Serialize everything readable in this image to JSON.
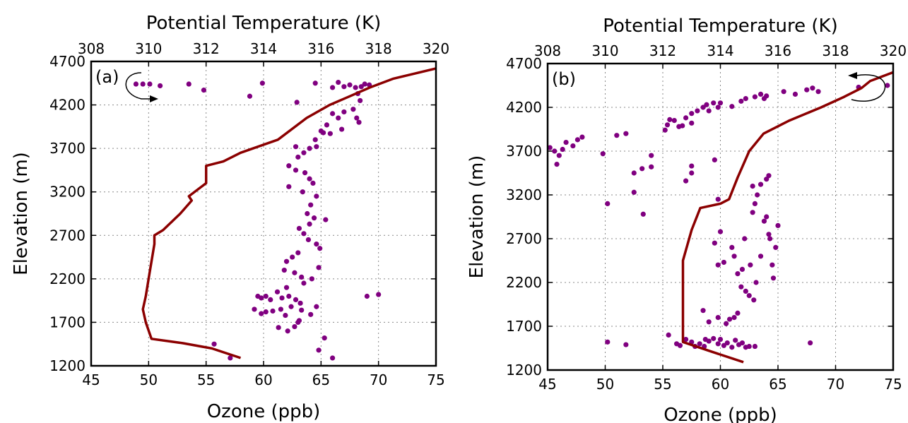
{
  "chart_data": [
    {
      "type": "scatter",
      "panel_label": "(a)",
      "xlabel": "Ozone (ppb)",
      "ylabel": "Elevation (m)",
      "x2label": "Potential Temperature (K)",
      "xlim": [
        45,
        75
      ],
      "ylim": [
        1200,
        4700
      ],
      "x2lim": [
        308,
        320
      ],
      "xticks": [
        "45",
        "50",
        "55",
        "60",
        "65",
        "70",
        "75"
      ],
      "yticks": [
        "1200",
        "1700",
        "2200",
        "2700",
        "3200",
        "3700",
        "4200",
        "4700"
      ],
      "x2ticks": [
        "308",
        "310",
        "312",
        "314",
        "316",
        "318",
        "320"
      ],
      "grid": true,
      "colors": {
        "points": "#800080",
        "line": "#8b0000"
      },
      "rotation_arrow": "counter-clockwise, top-left",
      "series": [
        {
          "kind": "scatter",
          "axis": "ozone",
          "points": [
            [
              48.9,
              4440
            ],
            [
              49.5,
              4440
            ],
            [
              50.1,
              4440
            ],
            [
              51,
              4420
            ],
            [
              53.5,
              4440
            ],
            [
              54.8,
              4370
            ],
            [
              58.8,
              4300
            ],
            [
              59.9,
              4450
            ],
            [
              62.9,
              4230
            ],
            [
              64.5,
              4450
            ],
            [
              66,
              4400
            ],
            [
              66.5,
              4460
            ],
            [
              67,
              4410
            ],
            [
              67.5,
              4430
            ],
            [
              68,
              4400
            ],
            [
              68.5,
              4410
            ],
            [
              68.8,
              4440
            ],
            [
              69.2,
              4430
            ],
            [
              68.2,
              4330
            ],
            [
              68.4,
              4250
            ],
            [
              67.8,
              4150
            ],
            [
              68.1,
              4050
            ],
            [
              68.3,
              4000
            ],
            [
              66,
              4100
            ],
            [
              66.5,
              4050
            ],
            [
              67,
              4120
            ],
            [
              65.5,
              3970
            ],
            [
              65,
              3900
            ],
            [
              64.5,
              3800
            ],
            [
              65.8,
              3870
            ],
            [
              66.8,
              3920
            ],
            [
              65.2,
              3880
            ],
            [
              64,
              3700
            ],
            [
              63.5,
              3650
            ],
            [
              64.6,
              3720
            ],
            [
              63,
              3600
            ],
            [
              62.8,
              3720
            ],
            [
              62.2,
              3500
            ],
            [
              62.8,
              3450
            ],
            [
              63.6,
              3420
            ],
            [
              64,
              3350
            ],
            [
              64.3,
              3300
            ],
            [
              62.2,
              3260
            ],
            [
              63.4,
              3200
            ],
            [
              64.6,
              3150
            ],
            [
              64.1,
              3050
            ],
            [
              63.8,
              2950
            ],
            [
              64.4,
              2900
            ],
            [
              65.4,
              2880
            ],
            [
              64,
              2830
            ],
            [
              63.1,
              2780
            ],
            [
              63.5,
              2720
            ],
            [
              63.9,
              2650
            ],
            [
              64.6,
              2600
            ],
            [
              64.9,
              2550
            ],
            [
              63,
              2500
            ],
            [
              62.5,
              2450
            ],
            [
              62,
              2400
            ],
            [
              61.8,
              2300
            ],
            [
              62.7,
              2270
            ],
            [
              63.3,
              2220
            ],
            [
              64.2,
              2200
            ],
            [
              64.8,
              2330
            ],
            [
              63.5,
              2150
            ],
            [
              62,
              2100
            ],
            [
              61.2,
              2050
            ],
            [
              60.2,
              2000
            ],
            [
              59.5,
              2000
            ],
            [
              59.8,
              1980
            ],
            [
              60.6,
              1960
            ],
            [
              61.6,
              1980
            ],
            [
              62.2,
              2000
            ],
            [
              62.8,
              1960
            ],
            [
              63.2,
              1920
            ],
            [
              62.4,
              1880
            ],
            [
              61.5,
              1850
            ],
            [
              60.8,
              1830
            ],
            [
              60.2,
              1820
            ],
            [
              59.8,
              1800
            ],
            [
              59.2,
              1850
            ],
            [
              61.9,
              1780
            ],
            [
              63.3,
              1840
            ],
            [
              64.6,
              1880
            ],
            [
              64.1,
              1790
            ],
            [
              63.1,
              1720
            ],
            [
              62.7,
              1650
            ],
            [
              62.1,
              1600
            ],
            [
              61.3,
              1640
            ],
            [
              63,
              1700
            ],
            [
              65.3,
              1520
            ],
            [
              64.8,
              1380
            ],
            [
              66,
              1290
            ],
            [
              57.1,
              1290
            ],
            [
              55.7,
              1450
            ],
            [
              69,
              2000
            ],
            [
              70,
              2020
            ]
          ]
        },
        {
          "kind": "line",
          "axis": "potential_temperature",
          "points": [
            [
              313.2,
              1290
            ],
            [
              312.2,
              1400
            ],
            [
              311.2,
              1460
            ],
            [
              310.1,
              1510
            ],
            [
              309.9,
              1700
            ],
            [
              309.8,
              1850
            ],
            [
              309.9,
              2000
            ],
            [
              310,
              2200
            ],
            [
              310.1,
              2400
            ],
            [
              310.2,
              2600
            ],
            [
              310.2,
              2700
            ],
            [
              310.5,
              2760
            ],
            [
              311.1,
              2950
            ],
            [
              311.5,
              3100
            ],
            [
              311.4,
              3150
            ],
            [
              312,
              3300
            ],
            [
              312,
              3500
            ],
            [
              312.6,
              3550
            ],
            [
              313.2,
              3650
            ],
            [
              314.5,
              3800
            ],
            [
              315.5,
              4050
            ],
            [
              316.3,
              4200
            ],
            [
              317,
              4300
            ],
            [
              317.7,
              4400
            ],
            [
              318.5,
              4500
            ],
            [
              320,
              4620
            ]
          ]
        }
      ]
    },
    {
      "type": "scatter",
      "panel_label": "(b)",
      "xlabel": "Ozone (ppb)",
      "ylabel": "Elevation (m)",
      "x2label": "Potential Temperature (K)",
      "xlim": [
        45,
        75
      ],
      "ylim": [
        1200,
        4700
      ],
      "x2lim": [
        308,
        320
      ],
      "xticks": [
        "45",
        "50",
        "55",
        "60",
        "65",
        "70",
        "75"
      ],
      "yticks": [
        "1200",
        "1700",
        "2200",
        "2700",
        "3200",
        "3700",
        "4200",
        "4700"
      ],
      "x2ticks": [
        "308",
        "310",
        "312",
        "314",
        "316",
        "318",
        "320"
      ],
      "grid": true,
      "colors": {
        "points": "#800080",
        "line": "#8b0000"
      },
      "rotation_arrow": "clockwise, top-right",
      "series": [
        {
          "kind": "scatter",
          "axis": "ozone",
          "points": [
            [
              45.2,
              3740
            ],
            [
              45.6,
              3700
            ],
            [
              46,
              3650
            ],
            [
              46.3,
              3720
            ],
            [
              46.6,
              3800
            ],
            [
              47.2,
              3760
            ],
            [
              47.6,
              3830
            ],
            [
              48,
              3860
            ],
            [
              45.8,
              3550
            ],
            [
              49.8,
              3670
            ],
            [
              50.2,
              3100
            ],
            [
              51,
              3880
            ],
            [
              51.8,
              3900
            ],
            [
              52.5,
              3450
            ],
            [
              52.5,
              3230
            ],
            [
              53.2,
              3500
            ],
            [
              53.3,
              2980
            ],
            [
              54,
              3520
            ],
            [
              54,
              3650
            ],
            [
              55.2,
              3940
            ],
            [
              55.6,
              4060
            ],
            [
              55.4,
              4000
            ],
            [
              56,
              4050
            ],
            [
              56.4,
              3980
            ],
            [
              56.7,
              3990
            ],
            [
              57,
              4080
            ],
            [
              57.5,
              4020
            ],
            [
              57.5,
              4130
            ],
            [
              58,
              4160
            ],
            [
              58.5,
              4200
            ],
            [
              58.8,
              4230
            ],
            [
              59,
              4160
            ],
            [
              59.4,
              4250
            ],
            [
              59.8,
              4200
            ],
            [
              60,
              4250
            ],
            [
              61,
              4210
            ],
            [
              61.8,
              4270
            ],
            [
              62.2,
              4300
            ],
            [
              63,
              4320
            ],
            [
              63.5,
              4350
            ],
            [
              63.8,
              4300
            ],
            [
              64,
              4330
            ],
            [
              65.5,
              4380
            ],
            [
              66.5,
              4350
            ],
            [
              67.5,
              4400
            ],
            [
              68,
              4420
            ],
            [
              68.5,
              4380
            ],
            [
              72,
              4430
            ],
            [
              74.5,
              4450
            ],
            [
              57.5,
              3530
            ],
            [
              57.5,
              3450
            ],
            [
              57,
              3360
            ],
            [
              59.5,
              3600
            ],
            [
              59.8,
              3150
            ],
            [
              60,
              2780
            ],
            [
              59.5,
              2650
            ],
            [
              60.3,
              2430
            ],
            [
              59.8,
              2400
            ],
            [
              61,
              2600
            ],
            [
              61.2,
              2500
            ],
            [
              61.5,
              2300
            ],
            [
              61.8,
              2150
            ],
            [
              62.2,
              2100
            ],
            [
              62.5,
              2050
            ],
            [
              62.8,
              3000
            ],
            [
              63,
              3100
            ],
            [
              63.2,
              3200
            ],
            [
              63.5,
              3320
            ],
            [
              63.8,
              2900
            ],
            [
              64,
              2950
            ],
            [
              64.2,
              2750
            ],
            [
              64.3,
              2700
            ],
            [
              64.5,
              2400
            ],
            [
              64.6,
              2250
            ],
            [
              64.8,
              2600
            ],
            [
              65,
              2850
            ],
            [
              64.2,
              3420
            ],
            [
              64,
              3380
            ],
            [
              62.8,
              3300
            ],
            [
              62.6,
              2400
            ],
            [
              63.1,
              2200
            ],
            [
              62.9,
              2000
            ],
            [
              63.5,
              2500
            ],
            [
              62.1,
              2700
            ],
            [
              61.9,
              2350
            ],
            [
              61.5,
              1850
            ],
            [
              61.2,
              1800
            ],
            [
              60.8,
              1780
            ],
            [
              60.5,
              1730
            ],
            [
              59.8,
              1800
            ],
            [
              59,
              1750
            ],
            [
              58.5,
              1880
            ],
            [
              58.7,
              1550
            ],
            [
              57.5,
              1520
            ],
            [
              57,
              1550
            ],
            [
              56.5,
              1480
            ],
            [
              56.2,
              1500
            ],
            [
              57.8,
              1470
            ],
            [
              58.2,
              1500
            ],
            [
              58.6,
              1470
            ],
            [
              59,
              1530
            ],
            [
              59.4,
              1560
            ],
            [
              59.8,
              1500
            ],
            [
              60,
              1550
            ],
            [
              60.3,
              1480
            ],
            [
              60.6,
              1510
            ],
            [
              61,
              1460
            ],
            [
              61.3,
              1540
            ],
            [
              61.6,
              1490
            ],
            [
              61.9,
              1510
            ],
            [
              62.2,
              1460
            ],
            [
              62.5,
              1470
            ],
            [
              63,
              1470
            ],
            [
              55.5,
              1600
            ],
            [
              50.2,
              1520
            ],
            [
              51.8,
              1490
            ],
            [
              67.8,
              1510
            ]
          ]
        },
        {
          "kind": "line",
          "axis": "potential_temperature",
          "points": [
            [
              314.8,
              1290
            ],
            [
              313.6,
              1420
            ],
            [
              312.7,
              1520
            ],
            [
              312.7,
              1700
            ],
            [
              312.7,
              2000
            ],
            [
              312.7,
              2200
            ],
            [
              312.7,
              2450
            ],
            [
              313,
              2800
            ],
            [
              313.3,
              3050
            ],
            [
              314,
              3100
            ],
            [
              314.3,
              3150
            ],
            [
              314.6,
              3400
            ],
            [
              315,
              3700
            ],
            [
              315.5,
              3900
            ],
            [
              316.4,
              4050
            ],
            [
              317.5,
              4200
            ],
            [
              318.3,
              4320
            ],
            [
              318.9,
              4420
            ],
            [
              319.2,
              4500
            ],
            [
              320,
              4600
            ]
          ]
        }
      ]
    }
  ]
}
